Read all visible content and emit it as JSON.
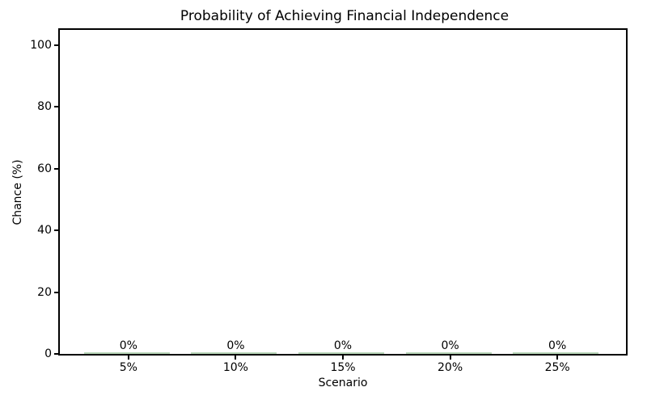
{
  "chart_data": {
    "type": "bar",
    "title": "Probability of Achieving Financial Independence",
    "xlabel": "Scenario",
    "ylabel": "Chance (%)",
    "categories": [
      "5%",
      "10%",
      "15%",
      "20%",
      "25%"
    ],
    "values": [
      0,
      0,
      0,
      0,
      0
    ],
    "bar_value_labels": [
      "0%",
      "0%",
      "0%",
      "0%",
      "0%"
    ],
    "yticks": [
      0,
      20,
      40,
      60,
      80,
      100
    ],
    "ytick_labels": [
      "0",
      "20",
      "40",
      "60",
      "80",
      "100"
    ],
    "ylim": [
      0,
      105
    ],
    "xlim_units": [
      -0.64,
      4.64
    ],
    "bar_width_units": 0.8,
    "grid": false,
    "legend": "none",
    "colors": {
      "bar": "#b9d6b9",
      "axis": "#000000",
      "text": "#000000",
      "background": "#ffffff"
    }
  }
}
